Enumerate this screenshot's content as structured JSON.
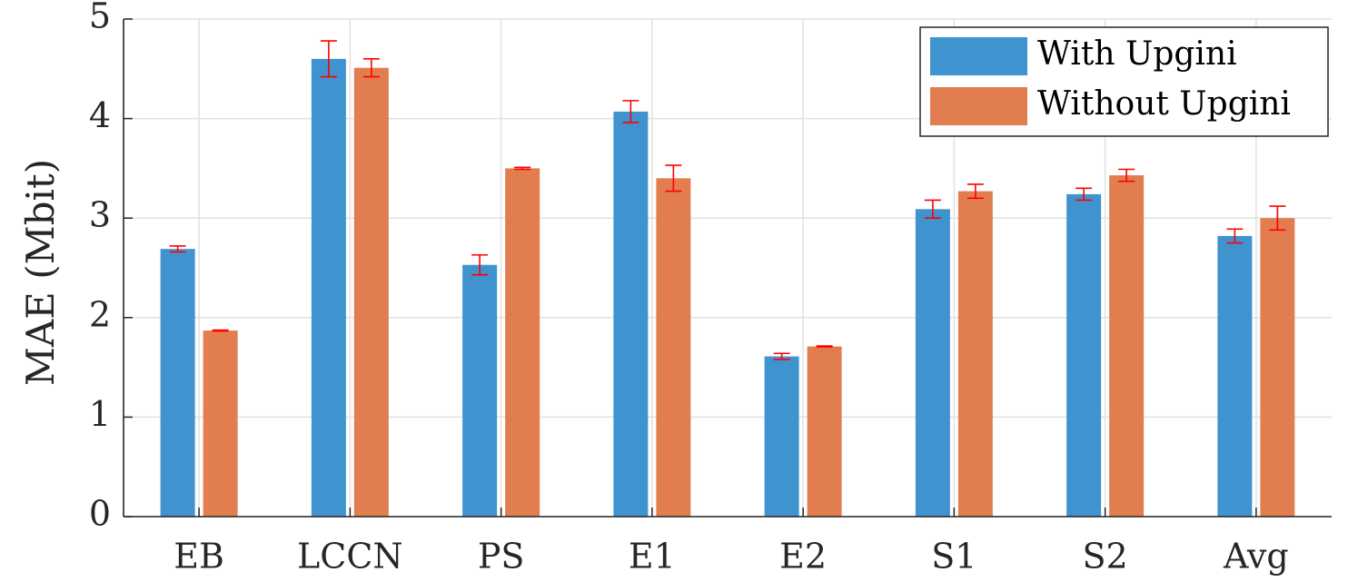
{
  "colors": {
    "series_1": "#3F93CF",
    "series_2": "#E27D50",
    "error_bar": "#FF0000",
    "grid": "#E0E0E0",
    "axis": "#262626"
  },
  "chart_data": {
    "type": "bar",
    "title": "",
    "xlabel": "",
    "ylabel": "MAE (Mbit)",
    "ylim": [
      0,
      5
    ],
    "yticks": [
      0,
      1,
      2,
      3,
      4,
      5
    ],
    "grid": true,
    "legend_position": "top-right",
    "categories": [
      "EB",
      "LCCN",
      "PS",
      "E1",
      "E2",
      "S1",
      "S2",
      "Avg"
    ],
    "series": [
      {
        "name": "With Upgini",
        "values": [
          2.69,
          4.6,
          2.53,
          4.07,
          1.61,
          3.09,
          3.24,
          2.82
        ],
        "errors": [
          0.03,
          0.18,
          0.1,
          0.11,
          0.03,
          0.09,
          0.06,
          0.07
        ]
      },
      {
        "name": "Without Upgini",
        "values": [
          1.87,
          4.51,
          3.5,
          3.4,
          1.71,
          3.27,
          3.43,
          3.0
        ],
        "errors": [
          0.005,
          0.09,
          0.01,
          0.13,
          0.005,
          0.07,
          0.06,
          0.12
        ]
      }
    ]
  }
}
